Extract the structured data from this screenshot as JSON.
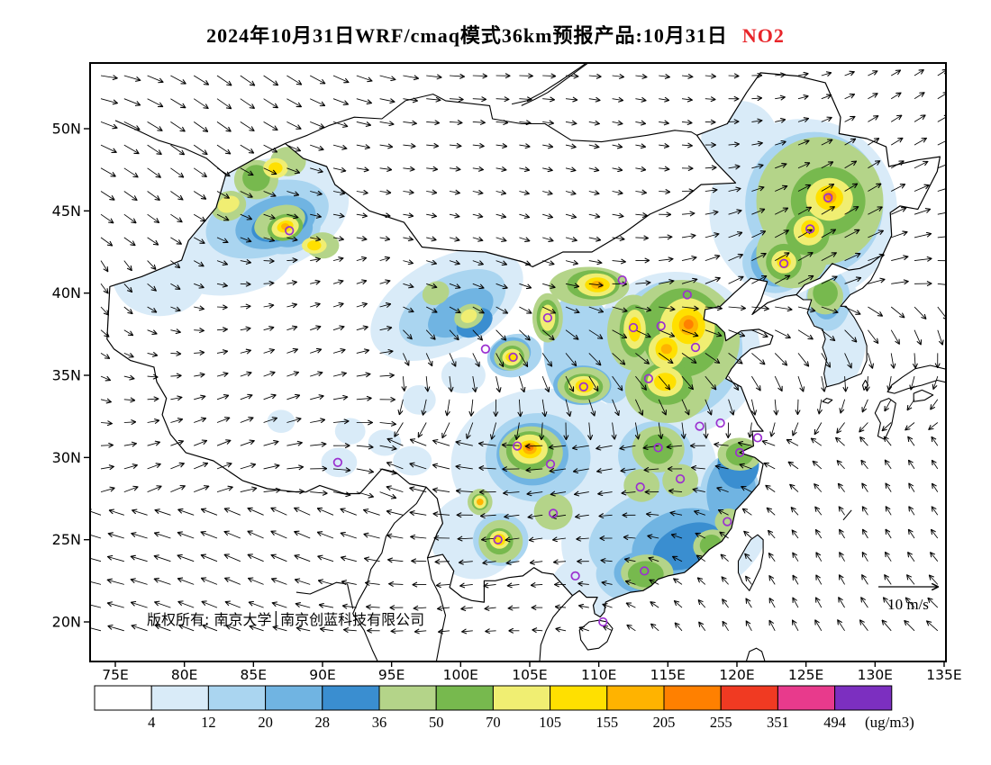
{
  "title": {
    "main": "2024年10月31日WRF/cmaq模式36km预报产品:10月31日",
    "species": "NO2",
    "species_color": "#e8252a"
  },
  "axes": {
    "lat_labels": [
      "50N",
      "45N",
      "40N",
      "35N",
      "30N",
      "25N",
      "20N"
    ],
    "lat_values": [
      50,
      45,
      40,
      35,
      30,
      25,
      20
    ],
    "lon_labels": [
      "75E",
      "80E",
      "85E",
      "90E",
      "95E",
      "100E",
      "105E",
      "110E",
      "115E",
      "120E",
      "125E",
      "130E",
      "135E"
    ],
    "lon_values": [
      75,
      80,
      85,
      90,
      95,
      100,
      105,
      110,
      115,
      120,
      125,
      130,
      135
    ]
  },
  "map": {
    "copyright": "版权所有: 南京大学│南京创蓝科技有限公司",
    "wind_scale_label": "10 m/s",
    "marker_color": "#9b30d0",
    "city_markers": [
      {
        "lon": 87.6,
        "lat": 43.8
      },
      {
        "lon": 126.6,
        "lat": 45.8
      },
      {
        "lon": 125.3,
        "lat": 43.9
      },
      {
        "lon": 123.4,
        "lat": 41.8
      },
      {
        "lon": 111.7,
        "lat": 40.8
      },
      {
        "lon": 112.5,
        "lat": 37.9
      },
      {
        "lon": 114.5,
        "lat": 38.0
      },
      {
        "lon": 117.0,
        "lat": 36.7
      },
      {
        "lon": 106.3,
        "lat": 38.5
      },
      {
        "lon": 101.8,
        "lat": 36.6
      },
      {
        "lon": 103.8,
        "lat": 36.1
      },
      {
        "lon": 108.9,
        "lat": 34.3
      },
      {
        "lon": 113.6,
        "lat": 34.8
      },
      {
        "lon": 117.3,
        "lat": 31.9
      },
      {
        "lon": 118.8,
        "lat": 32.1
      },
      {
        "lon": 121.5,
        "lat": 31.2
      },
      {
        "lon": 104.1,
        "lat": 30.7
      },
      {
        "lon": 106.5,
        "lat": 29.6
      },
      {
        "lon": 114.3,
        "lat": 30.6
      },
      {
        "lon": 115.9,
        "lat": 28.7
      },
      {
        "lon": 113.0,
        "lat": 28.2
      },
      {
        "lon": 106.7,
        "lat": 26.6
      },
      {
        "lon": 102.7,
        "lat": 25.0
      },
      {
        "lon": 108.3,
        "lat": 22.8
      },
      {
        "lon": 113.3,
        "lat": 23.1
      },
      {
        "lon": 110.3,
        "lat": 20.0
      },
      {
        "lon": 119.3,
        "lat": 26.1
      },
      {
        "lon": 120.2,
        "lat": 30.3
      },
      {
        "lon": 91.1,
        "lat": 29.7
      },
      {
        "lon": 116.4,
        "lat": 39.9
      }
    ]
  },
  "colorbar": {
    "tick_labels": [
      "4",
      "12",
      "20",
      "28",
      "36",
      "50",
      "70",
      "105",
      "155",
      "205",
      "255",
      "351",
      "494"
    ],
    "unit_label": "(ug/m3)",
    "colors": [
      "#ffffff",
      "#d9ebf8",
      "#aad5f0",
      "#70b4e2",
      "#3a8ed0",
      "#b4d489",
      "#77b94e",
      "#f0ee72",
      "#ffe000",
      "#ffb300",
      "#ff8000",
      "#f03a22",
      "#e83a8c",
      "#7c2fc0"
    ]
  },
  "chart_data": {
    "type": "heatmap",
    "title": "2024年10月31日WRF/cmaq模式36km预报产品:10月31日 NO2",
    "model": "WRF/cmaq",
    "grid_resolution": "36km",
    "forecast_date": "2024年10月31日",
    "pollutant": "NO2",
    "unit": "ug/m3",
    "x_ticks": [
      "75E",
      "80E",
      "85E",
      "90E",
      "95E",
      "100E",
      "105E",
      "110E",
      "115E",
      "120E",
      "125E",
      "130E",
      "135E"
    ],
    "y_ticks": [
      "50N",
      "45N",
      "40N",
      "35N",
      "30N",
      "25N",
      "20N"
    ],
    "lon_range": [
      75,
      135
    ],
    "lat_range": [
      17.5,
      54
    ],
    "contour_levels": [
      4,
      12,
      20,
      28,
      36,
      50,
      70,
      105,
      155,
      205,
      255,
      351,
      494
    ],
    "level_colors": [
      "#ffffff",
      "#d9ebf8",
      "#aad5f0",
      "#70b4e2",
      "#3a8ed0",
      "#b4d489",
      "#77b94e",
      "#f0ee72",
      "#ffe000",
      "#ffb300",
      "#ff8000",
      "#f03a22",
      "#e83a8c",
      "#7c2fc0"
    ],
    "wind_reference_ms": 10,
    "high_concentration_regions": [
      {
        "region": "North China Plain",
        "approx_level_ugm3": "70-205"
      },
      {
        "region": "Northeast China Plain",
        "approx_level_ugm3": "70-205"
      },
      {
        "region": "Sichuan Basin",
        "approx_level_ugm3": "70-205"
      },
      {
        "region": "Guanzhong Plain (Xi'an)",
        "approx_level_ugm3": "70-155"
      },
      {
        "region": "Urumqi / northern Xinjiang",
        "approx_level_ugm3": "70-155"
      },
      {
        "region": "Hetao (Baotou-Hohhot)",
        "approx_level_ugm3": "70-155"
      },
      {
        "region": "Kunming area",
        "approx_level_ugm3": "70-105"
      },
      {
        "region": "Lanzhou",
        "approx_level_ugm3": "70-105"
      }
    ]
  }
}
